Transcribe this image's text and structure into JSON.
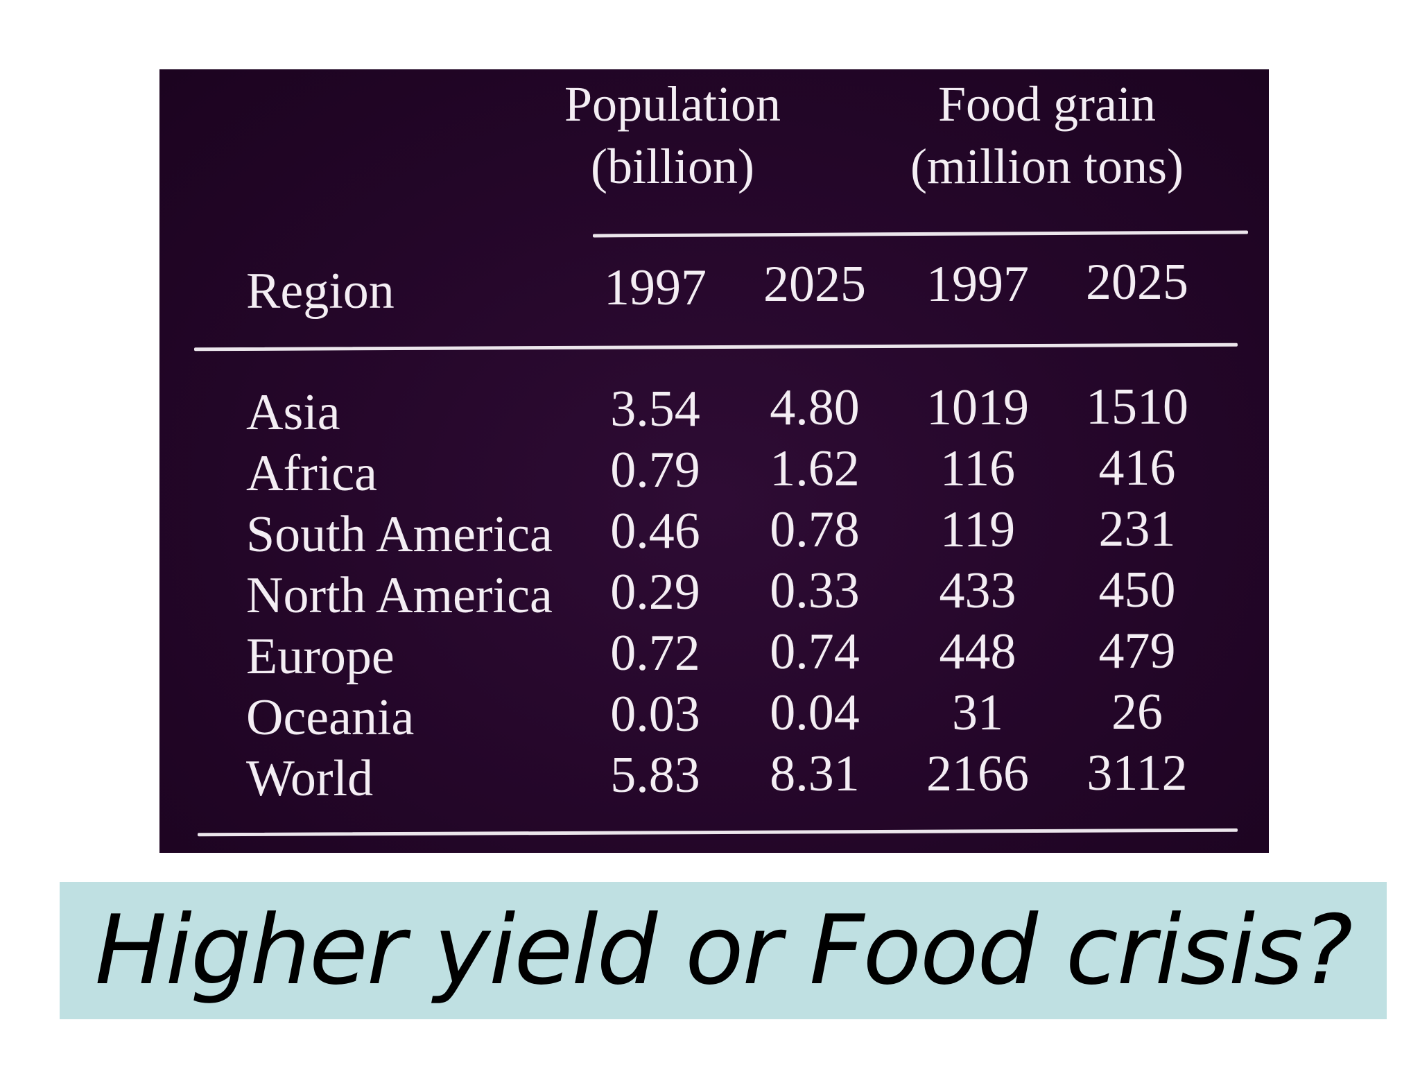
{
  "table": {
    "group_headers": {
      "population_line1": "Population",
      "population_line2": "(billion)",
      "food_line1": "Food grain",
      "food_line2": "(million tons)"
    },
    "column_headers": {
      "region": "Region",
      "pop_1997": "1997",
      "pop_2025": "2025",
      "food_1997": "1997",
      "food_2025": "2025"
    },
    "rows": [
      {
        "region": "Asia",
        "pop_1997": "3.54",
        "pop_2025": "4.80",
        "food_1997": "1019",
        "food_2025": "1510"
      },
      {
        "region": "Africa",
        "pop_1997": "0.79",
        "pop_2025": "1.62",
        "food_1997": "116",
        "food_2025": "416"
      },
      {
        "region": "South America",
        "pop_1997": "0.46",
        "pop_2025": "0.78",
        "food_1997": "119",
        "food_2025": "231"
      },
      {
        "region": "North America",
        "pop_1997": "0.29",
        "pop_2025": "0.33",
        "food_1997": "433",
        "food_2025": "450"
      },
      {
        "region": "Europe",
        "pop_1997": "0.72",
        "pop_2025": "0.74",
        "food_1997": "448",
        "food_2025": "479"
      },
      {
        "region": "Oceania",
        "pop_1997": "0.03",
        "pop_2025": "0.04",
        "food_1997": "31",
        "food_2025": "26"
      },
      {
        "region": "World",
        "pop_1997": "5.83",
        "pop_2025": "8.31",
        "food_1997": "2166",
        "food_2025": "3112"
      }
    ]
  },
  "caption": {
    "text": "Higher yield or Food crisis?"
  },
  "colors": {
    "table_background": "#240629",
    "table_text": "#f4eef4",
    "caption_background": "#bfe0e2",
    "caption_text": "#000000"
  }
}
